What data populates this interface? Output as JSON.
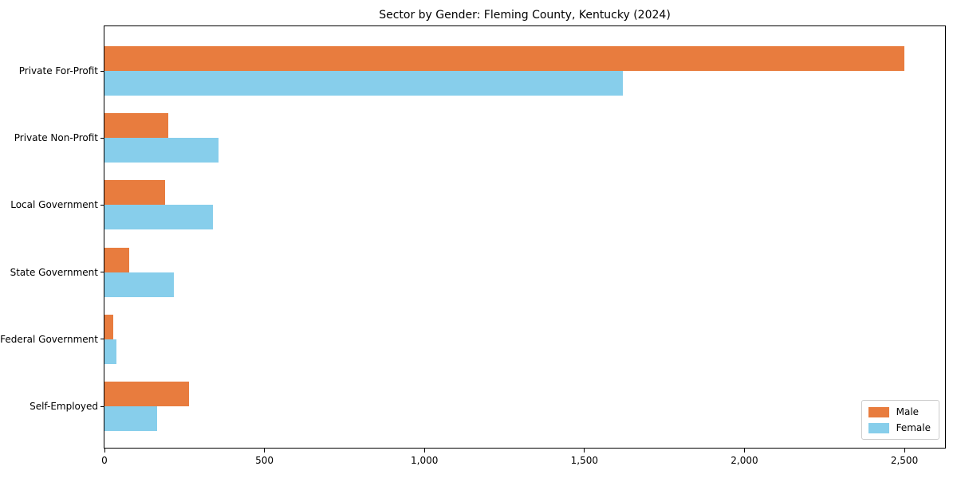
{
  "title": "Sector by Gender: Fleming County, Kentucky (2024)",
  "colors": {
    "male": "#e87c3e",
    "female": "#87ceeb",
    "axis": "#000000",
    "legend_border": "#cccccc",
    "background": "#ffffff"
  },
  "chart_data": {
    "type": "bar",
    "orientation": "horizontal",
    "title": "Sector by Gender: Fleming County, Kentucky (2024)",
    "categories": [
      "Private For-Profit",
      "Private Non-Profit",
      "Local Government",
      "State Government",
      "Federal Government",
      "Self-Employed"
    ],
    "series": [
      {
        "name": "Male",
        "color": "#e87c3e",
        "values": [
          2500,
          200,
          190,
          78,
          28,
          264
        ]
      },
      {
        "name": "Female",
        "color": "#87ceeb",
        "values": [
          1620,
          356,
          340,
          218,
          38,
          164
        ]
      }
    ],
    "xlabel": "",
    "ylabel": "",
    "xlim": [
      0,
      2627
    ],
    "x_ticks": [
      0,
      500,
      1000,
      1500,
      2000,
      2500
    ],
    "x_tick_labels": [
      "0",
      "500",
      "1,000",
      "1,500",
      "2,000",
      "2,500"
    ],
    "grid": false,
    "legend_position": "lower right",
    "legend_title": ""
  }
}
